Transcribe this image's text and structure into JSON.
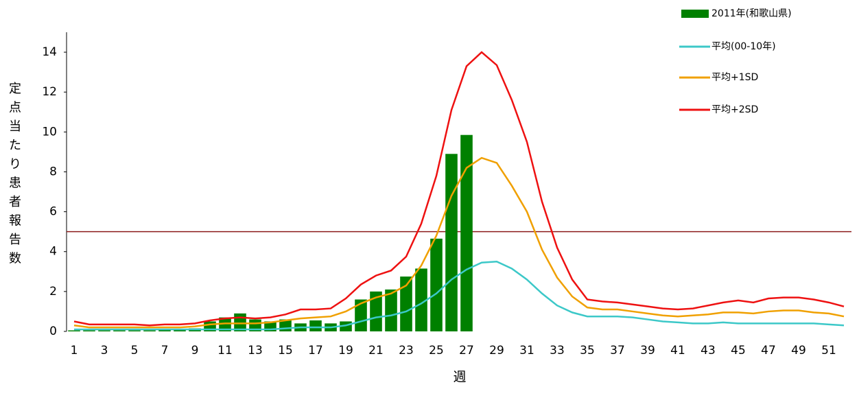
{
  "chart_data": {
    "type": "bar-line",
    "y_label": "定点当たり患者報告数",
    "x_label": "週",
    "categories": [
      1,
      null,
      3,
      null,
      5,
      null,
      7,
      null,
      9,
      null,
      11,
      null,
      13,
      null,
      15,
      null,
      17,
      null,
      19,
      null,
      21,
      null,
      23,
      null,
      25,
      null,
      27,
      null,
      29,
      null,
      31,
      null,
      33,
      null,
      35,
      null,
      37,
      null,
      39,
      null,
      41,
      null,
      43,
      null,
      45,
      null,
      47,
      null,
      49,
      null,
      51,
      null
    ],
    "series": [
      {
        "name": "2011年(和歌山県)",
        "kind": "bar",
        "color": "#008000",
        "values": [
          0.05,
          0.05,
          0.05,
          0.05,
          0.05,
          0.05,
          0.1,
          0.1,
          0.15,
          0.5,
          0.7,
          0.9,
          0.6,
          0.5,
          0.6,
          0.4,
          0.55,
          0.4,
          0.5,
          1.6,
          2.0,
          2.1,
          2.75,
          3.15,
          4.65,
          8.9,
          9.85,
          null,
          null,
          null,
          null,
          null,
          null,
          null,
          null,
          null,
          null,
          null,
          null,
          null,
          null,
          null,
          null,
          null,
          null,
          null,
          null,
          null,
          null,
          null,
          null,
          null
        ]
      },
      {
        "name": "平均(00-10年)",
        "kind": "line",
        "color": "#3cc8c8",
        "values": [
          0.1,
          0.1,
          0.1,
          0.1,
          0.1,
          0.1,
          0.1,
          0.1,
          0.1,
          0.1,
          0.1,
          0.1,
          0.1,
          0.1,
          0.15,
          0.2,
          0.2,
          0.2,
          0.3,
          0.5,
          0.7,
          0.8,
          1.0,
          1.4,
          1.9,
          2.6,
          3.1,
          3.45,
          3.5,
          3.15,
          2.6,
          1.9,
          1.3,
          0.95,
          0.75,
          0.75,
          0.75,
          0.7,
          0.6,
          0.5,
          0.45,
          0.4,
          0.4,
          0.45,
          0.4,
          0.4,
          0.4,
          0.4,
          0.4,
          0.4,
          0.35,
          0.3
        ]
      },
      {
        "name": "平均+1SD",
        "kind": "line",
        "color": "#f0a000",
        "values": [
          0.3,
          0.2,
          0.2,
          0.2,
          0.2,
          0.2,
          0.2,
          0.2,
          0.25,
          0.35,
          0.4,
          0.4,
          0.4,
          0.45,
          0.55,
          0.65,
          0.7,
          0.75,
          1.0,
          1.4,
          1.7,
          1.9,
          2.3,
          3.3,
          4.8,
          6.8,
          8.2,
          8.7,
          8.45,
          7.3,
          6.0,
          4.1,
          2.7,
          1.75,
          1.2,
          1.1,
          1.1,
          1.0,
          0.9,
          0.8,
          0.75,
          0.8,
          0.85,
          0.95,
          0.95,
          0.9,
          1.0,
          1.05,
          1.05,
          0.95,
          0.9,
          0.75
        ]
      },
      {
        "name": "平均+2SD",
        "kind": "line",
        "color": "#ee1111",
        "values": [
          0.5,
          0.35,
          0.35,
          0.35,
          0.35,
          0.3,
          0.35,
          0.35,
          0.4,
          0.55,
          0.65,
          0.7,
          0.65,
          0.7,
          0.85,
          1.1,
          1.1,
          1.15,
          1.65,
          2.35,
          2.8,
          3.05,
          3.75,
          5.4,
          7.8,
          11.1,
          13.3,
          14.0,
          13.35,
          11.6,
          9.5,
          6.5,
          4.2,
          2.6,
          1.6,
          1.5,
          1.45,
          1.35,
          1.25,
          1.15,
          1.1,
          1.15,
          1.3,
          1.45,
          1.55,
          1.45,
          1.65,
          1.7,
          1.7,
          1.6,
          1.45,
          1.25
        ]
      }
    ],
    "threshold": 5,
    "threshold_color": "#8b1a1a",
    "ylim": [
      0,
      15
    ],
    "yticks": [
      0,
      2,
      4,
      6,
      8,
      10,
      12,
      14
    ],
    "grid": false,
    "legend": "top-right"
  }
}
